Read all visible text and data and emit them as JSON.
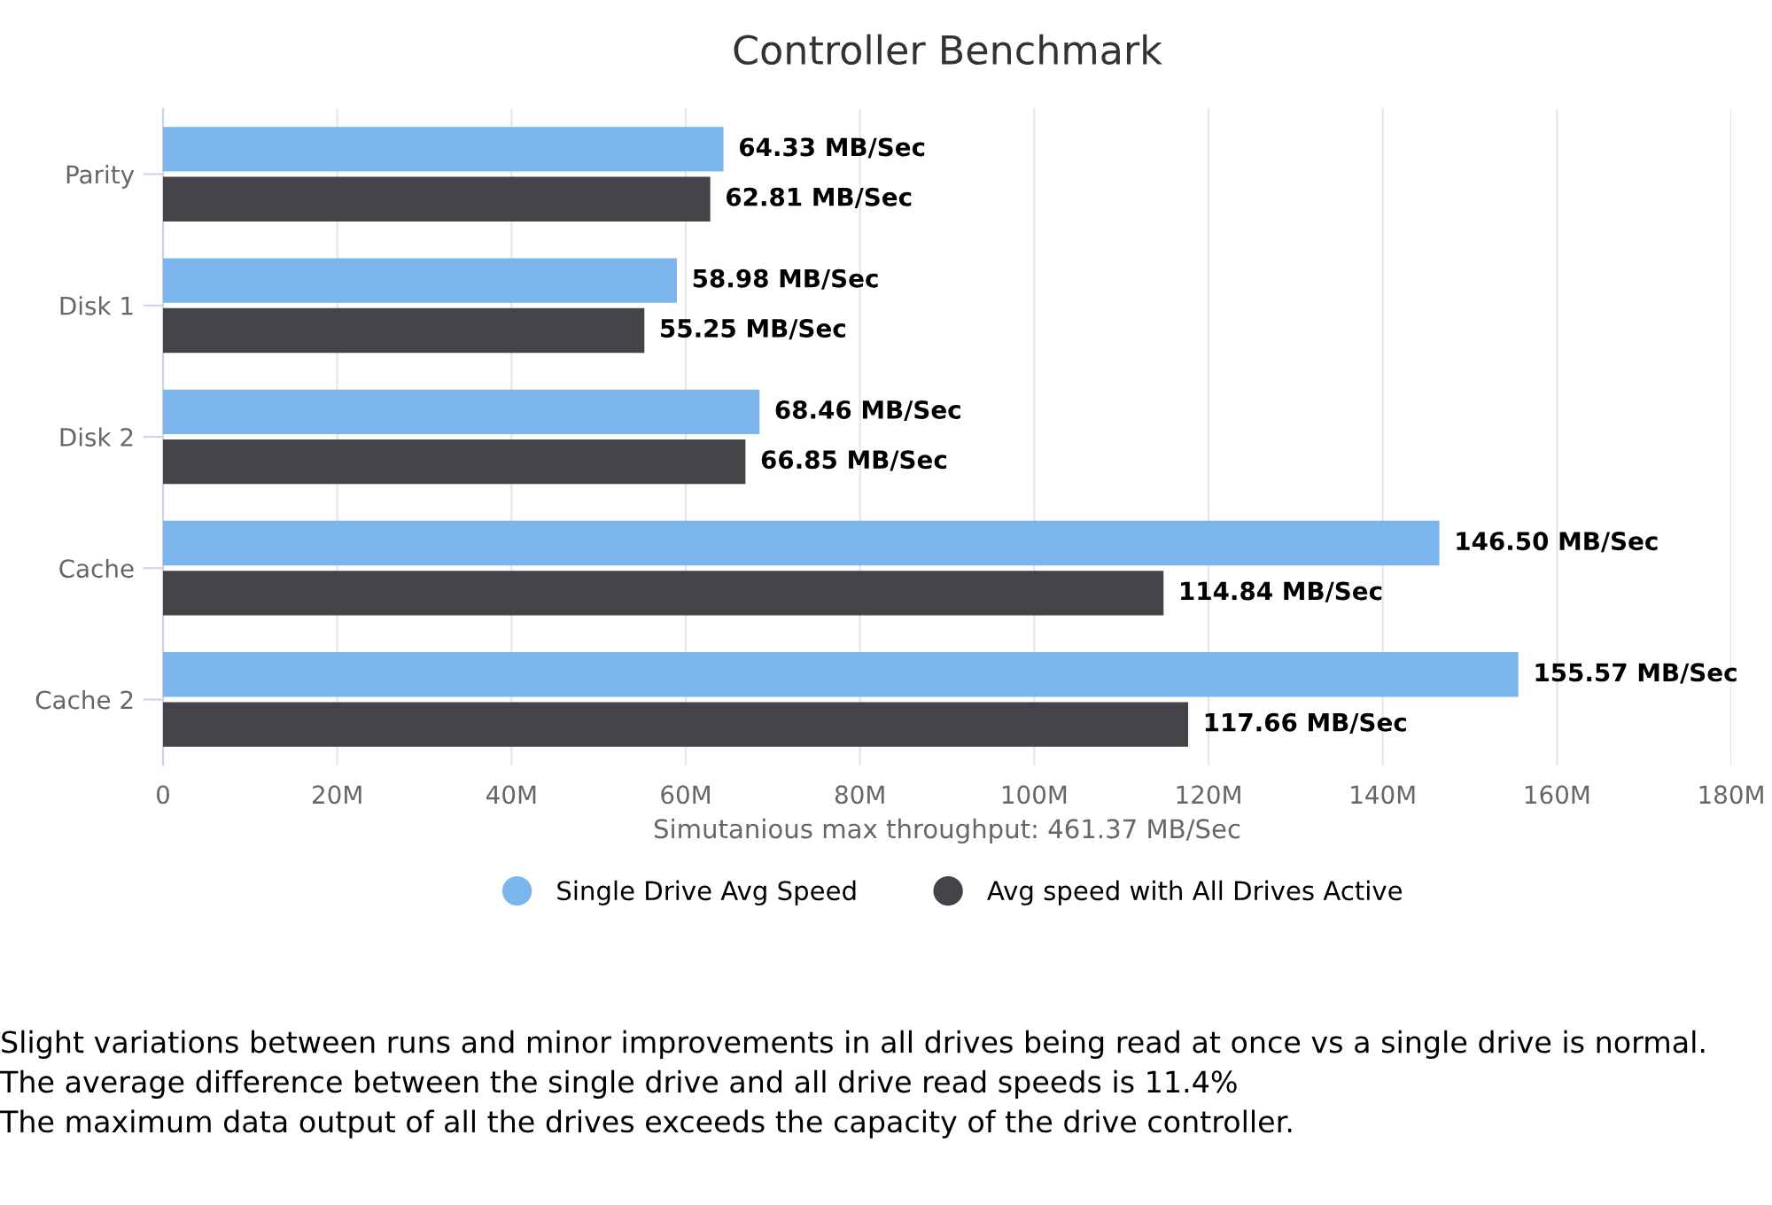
{
  "chart_data": {
    "type": "bar",
    "orientation": "horizontal",
    "title": "Controller Benchmark",
    "xlabel": "Simutanious max throughput: 461.37 MB/Sec",
    "categories": [
      "Parity",
      "Disk 1",
      "Disk 2",
      "Cache",
      "Cache 2"
    ],
    "series": [
      {
        "name": "Single Drive Avg Speed",
        "color": "#7cb5ec",
        "values": [
          64.33,
          58.98,
          68.46,
          146.5,
          155.57
        ],
        "value_labels": [
          "64.33 MB/Sec",
          "58.98 MB/Sec",
          "68.46 MB/Sec",
          "146.50 MB/Sec",
          "155.57 MB/Sec"
        ]
      },
      {
        "name": "Avg speed with All Drives Active",
        "color": "#434348",
        "values": [
          62.81,
          55.25,
          66.85,
          114.84,
          117.66
        ],
        "value_labels": [
          "62.81 MB/Sec",
          "55.25 MB/Sec",
          "66.85 MB/Sec",
          "114.84 MB/Sec",
          "117.66 MB/Sec"
        ]
      }
    ],
    "xlim": [
      0,
      180
    ],
    "xticks": [
      0,
      {
        "value": 20,
        "label": "20M"
      },
      {
        "value": 40,
        "label": "40M"
      },
      {
        "value": 60,
        "label": "60M"
      },
      {
        "value": 80,
        "label": "80M"
      },
      {
        "value": 100,
        "label": "100M"
      },
      {
        "value": 120,
        "label": "120M"
      },
      {
        "value": 140,
        "label": "140M"
      },
      {
        "value": 160,
        "label": "160M"
      },
      {
        "value": 180,
        "label": "180M"
      }
    ],
    "grid": "x",
    "legend": "bottom",
    "annotations": [
      "Slight variations between runs and minor improvements in all drives being read at once vs a single drive is normal.",
      "The average difference between the single drive and all drive read speeds is 11.4%",
      "The maximum data output of all the drives exceeds the capacity of the drive controller."
    ]
  }
}
